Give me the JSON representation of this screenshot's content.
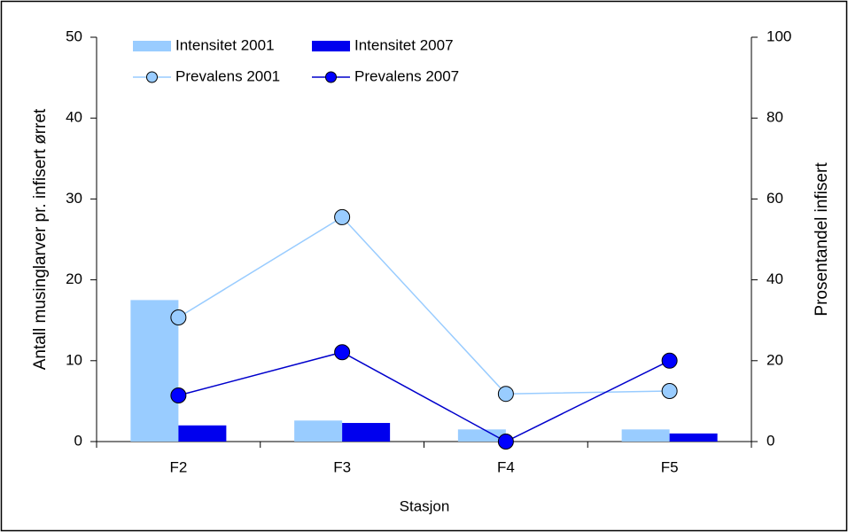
{
  "chart_data": {
    "type": "bar",
    "categories": [
      "F2",
      "F3",
      "F4",
      "F5"
    ],
    "x_label": "Stasjon",
    "y_label": "Antall musinglarver pr. infisert ørret",
    "y2_label": "Prosentandel infisert",
    "ylim": [
      0,
      50
    ],
    "yticks": [
      0,
      10,
      20,
      30,
      40,
      50
    ],
    "y2lim": [
      0,
      100
    ],
    "y2ticks": [
      0,
      20,
      40,
      60,
      80,
      100
    ],
    "series": [
      {
        "name": "Intensitet 2001",
        "type": "bar",
        "color": "#99ccff",
        "values": [
          17.5,
          2.6,
          1.5,
          1.5
        ]
      },
      {
        "name": "Intensitet 2007",
        "type": "bar",
        "color": "#0000ee",
        "values": [
          2.0,
          2.3,
          0,
          1.0
        ]
      },
      {
        "name": "Prevalens 2001",
        "type": "line",
        "axis": "y2",
        "color": "#99ccff",
        "values": [
          30.7,
          55.5,
          11.8,
          12.5
        ]
      },
      {
        "name": "Prevalens 2007",
        "type": "line",
        "axis": "y2",
        "color": "#0000cc",
        "values": [
          11.4,
          22.1,
          0,
          20
        ]
      }
    ]
  }
}
